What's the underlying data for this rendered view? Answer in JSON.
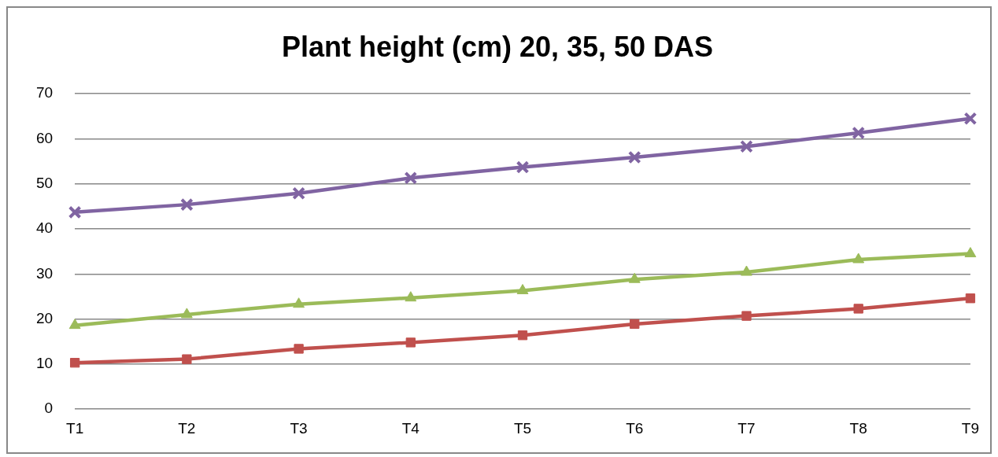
{
  "chart_data": {
    "type": "line",
    "title": "Plant height (cm) 20, 35, 50 DAS",
    "categories": [
      "T1",
      "T2",
      "T3",
      "T4",
      "T5",
      "T6",
      "T7",
      "T8",
      "T9"
    ],
    "series": [
      {
        "color": "#c0504d",
        "marker": "square",
        "values": [
          10.3,
          11.1,
          13.4,
          14.8,
          16.4,
          18.9,
          20.7,
          22.3,
          24.6
        ]
      },
      {
        "color": "#9bbb59",
        "marker": "triangle",
        "values": [
          18.6,
          21.0,
          23.3,
          24.7,
          26.3,
          28.8,
          30.4,
          33.2,
          34.5
        ]
      },
      {
        "color": "#8064a2",
        "marker": "cross",
        "values": [
          43.7,
          45.4,
          47.9,
          51.3,
          53.7,
          55.9,
          58.3,
          61.3,
          64.5
        ]
      }
    ],
    "ylim": [
      0,
      70
    ],
    "yticks": [
      0,
      10,
      20,
      30,
      40,
      50,
      60,
      70
    ],
    "grid": "y",
    "legend": false
  }
}
